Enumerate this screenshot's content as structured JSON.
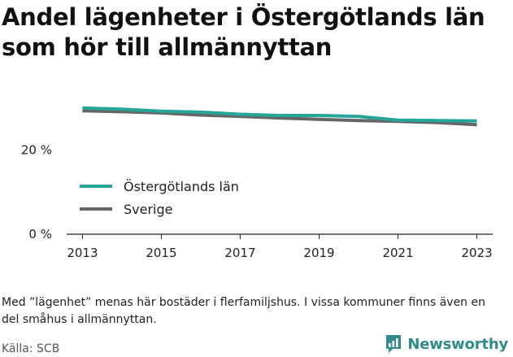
{
  "header": {
    "title": "Andel lägenheter i Östergötlands län som hör till allmännyttan"
  },
  "chart_data": {
    "type": "line",
    "title": "Andel lägenheter i Östergötlands län som hör till allmännyttan",
    "xlabel": "",
    "ylabel": "",
    "x": [
      2013,
      2014,
      2015,
      2016,
      2017,
      2018,
      2019,
      2020,
      2021,
      2022,
      2023
    ],
    "x_ticks": [
      "2013",
      "2015",
      "2017",
      "2019",
      "2021",
      "2023"
    ],
    "y_ticks": [
      {
        "value": 0,
        "label": "0 %"
      },
      {
        "value": 20,
        "label": "20 %"
      }
    ],
    "ylim": [
      0,
      34
    ],
    "xlim": [
      2012.6,
      2023.4
    ],
    "grid": false,
    "legend_position": "inside-left",
    "series": [
      {
        "name": "Östergötlands län",
        "color": "#26a69a",
        "values": [
          30.0,
          29.7,
          29.2,
          29.0,
          28.5,
          28.2,
          28.2,
          28.0,
          27.1,
          27.0,
          26.9
        ]
      },
      {
        "name": "Sverige",
        "color": "#666666",
        "values": [
          29.3,
          29.1,
          28.8,
          28.3,
          28.0,
          27.6,
          27.3,
          27.0,
          26.8,
          26.5,
          26.0
        ]
      }
    ]
  },
  "footer": {
    "note": "Med ”lägenhet” menas här bostäder i flerfamiljshus. I vissa kommuner finns även en del småhus i allmännyttan.",
    "source": "Källa: SCB",
    "brand": "Newsworthy",
    "brand_color": "#2e8b88"
  }
}
